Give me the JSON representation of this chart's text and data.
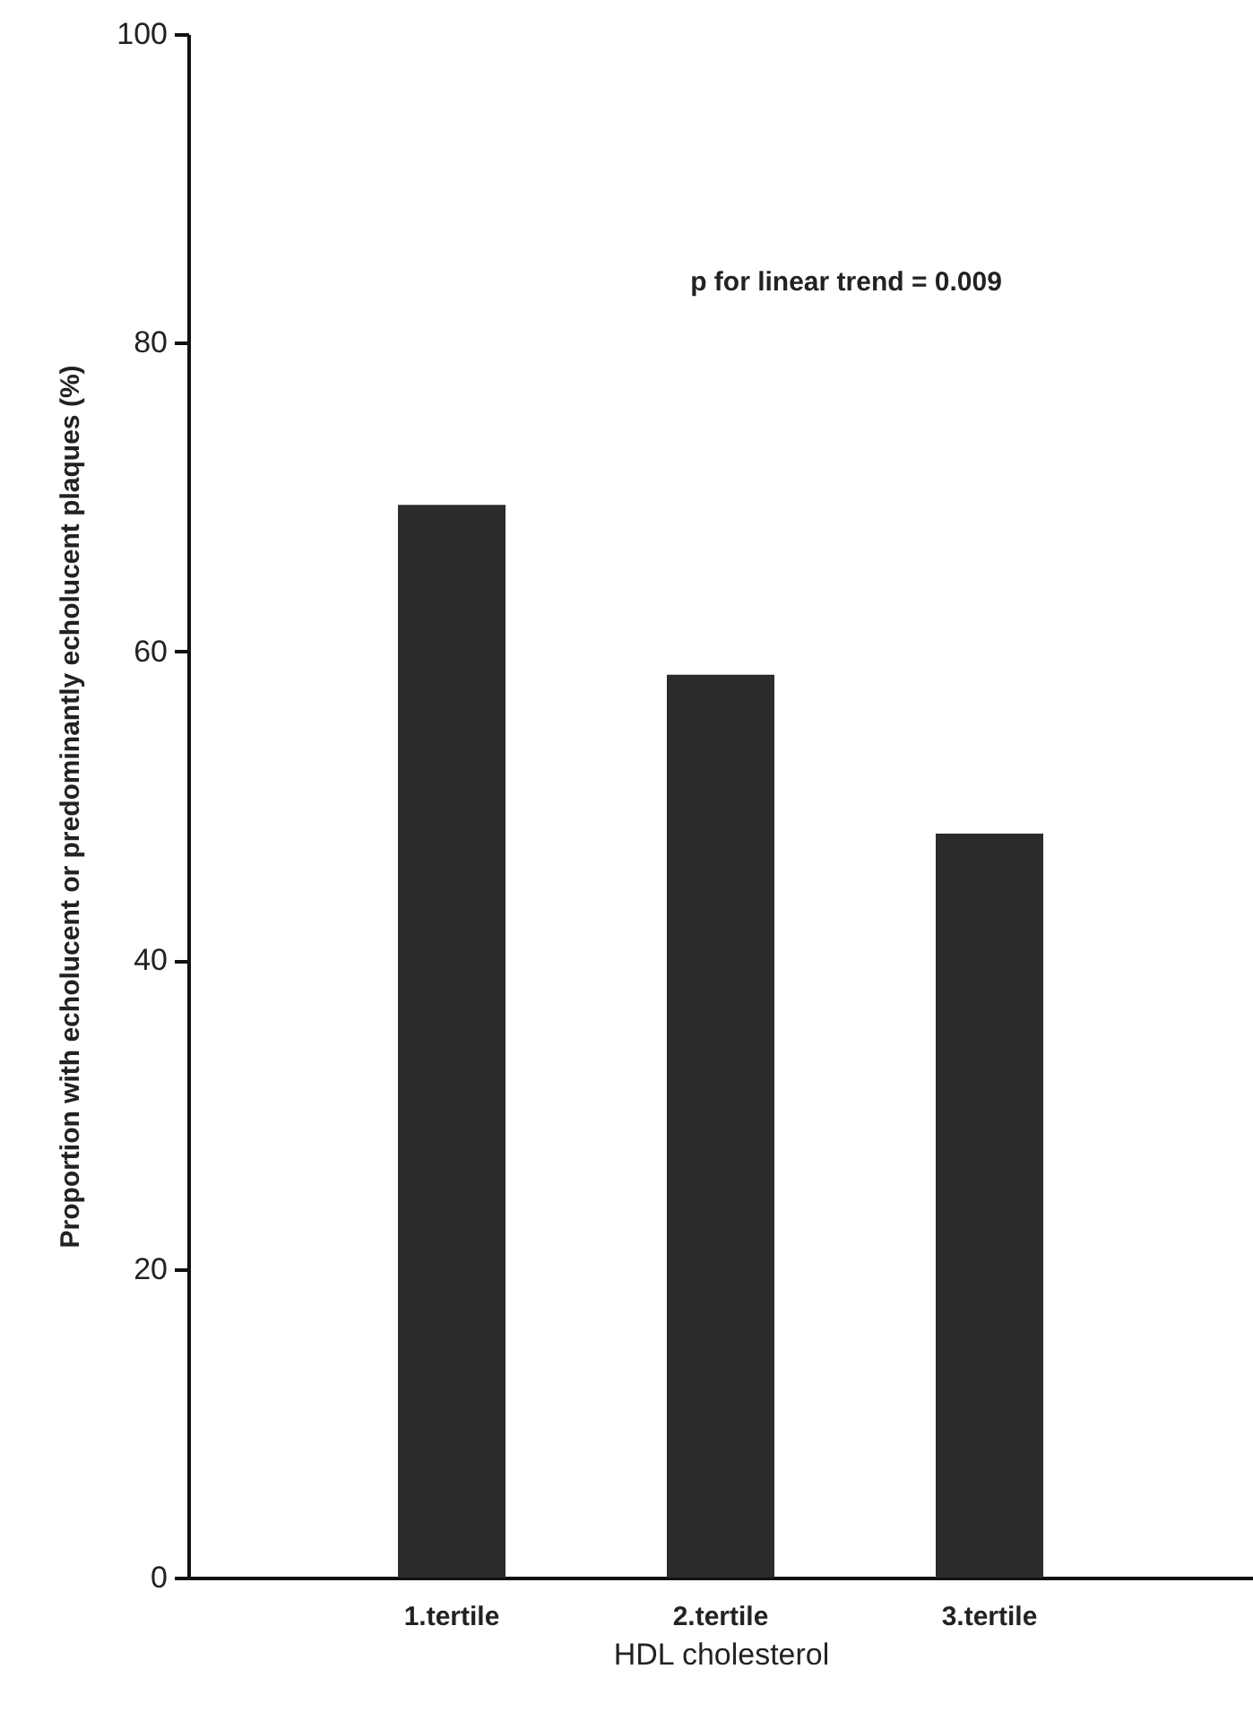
{
  "chart_data": {
    "type": "bar",
    "xlabel": "HDL cholesterol",
    "ylabel": "Proportion with echolucent or predominantly echolucent plaques (%)",
    "categories": [
      "1.tertile",
      "2.tertile",
      "3.tertile"
    ],
    "values": [
      69.5,
      58.5,
      48.2
    ],
    "color": "#2b2b2b",
    "ylim": [
      0,
      100
    ],
    "yticks": [
      0,
      20,
      40,
      60,
      80,
      100
    ],
    "grid": false,
    "annotations": [
      "p for linear trend = 0.009"
    ]
  }
}
